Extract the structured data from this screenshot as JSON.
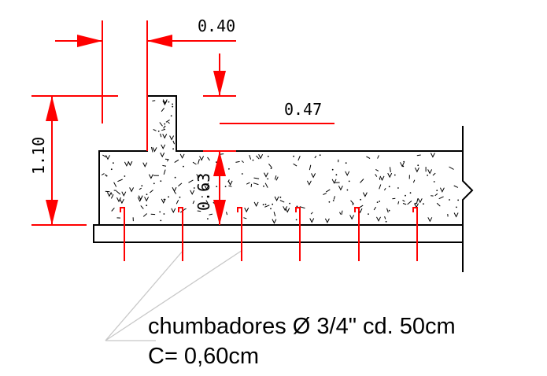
{
  "colors": {
    "outline": "#000000",
    "dimension": "#ff0000",
    "rebar": "#ff0000",
    "leader": "#c8c8c8",
    "hatch": "#000000"
  },
  "dimensions": {
    "wall_width": "0.40",
    "offset": "0.47",
    "slab_thickness": "0.63",
    "total_height": "1.10"
  },
  "notes": {
    "line1": "chumbadores Ø 3/4\" cd. 50cm",
    "line2": "C= 0,60cm"
  }
}
